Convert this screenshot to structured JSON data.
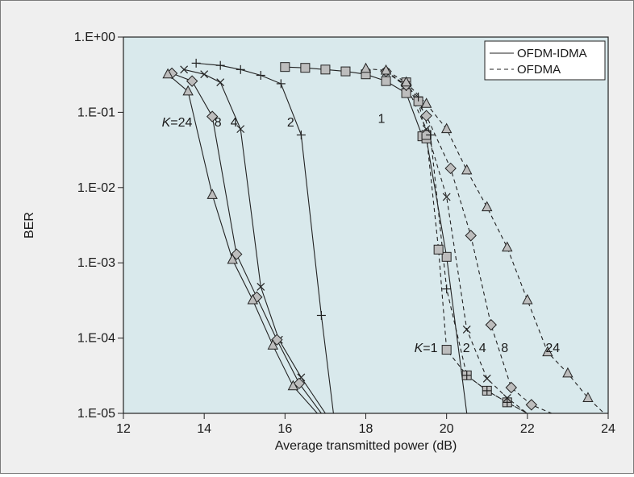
{
  "chart_data": {
    "type": "line",
    "xlabel": "Average transmitted power (dB)",
    "ylabel": "BER",
    "xlim": [
      12,
      24
    ],
    "ylim": [
      1e-05,
      1
    ],
    "yscale": "log",
    "xticks": [
      "12",
      "14",
      "16",
      "18",
      "20",
      "22",
      "24"
    ],
    "yticks": [
      "1.E+00",
      "1.E-01",
      "1.E-02",
      "1.E-03",
      "1.E-04",
      "1.E-05"
    ],
    "legend": {
      "placement": "top-right",
      "entries": [
        {
          "label": "OFDM-IDMA",
          "style": "solid"
        },
        {
          "label": "OFDMA",
          "style": "dashed"
        }
      ]
    },
    "annotations": [
      {
        "text": "K=24",
        "x": 12.95,
        "y": 0.065
      },
      {
        "text": "8",
        "x": 14.25,
        "y": 0.065
      },
      {
        "text": "4",
        "x": 14.65,
        "y": 0.065
      },
      {
        "text": "2",
        "x": 16.05,
        "y": 0.065
      },
      {
        "text": "1",
        "x": 18.3,
        "y": 0.072
      },
      {
        "text": "K=1",
        "x": 19.2,
        "y": 6.5e-05
      },
      {
        "text": "2",
        "x": 20.4,
        "y": 6.5e-05
      },
      {
        "text": "4",
        "x": 20.8,
        "y": 6.5e-05
      },
      {
        "text": "8",
        "x": 21.35,
        "y": 6.5e-05
      },
      {
        "text": "24",
        "x": 22.45,
        "y": 6.5e-05
      }
    ],
    "series": [
      {
        "name": "OFDM-IDMA",
        "K": "1",
        "style": "solid",
        "marker": "square",
        "x": [
          16.0,
          16.5,
          17.0,
          17.5,
          18.0,
          18.5,
          19.0,
          19.4,
          19.5,
          20.0,
          20.5
        ],
        "y": [
          0.4,
          0.39,
          0.37,
          0.35,
          0.32,
          0.26,
          0.18,
          0.048,
          0.045,
          0.0012,
          1e-05
        ]
      },
      {
        "name": "OFDM-IDMA",
        "K": "2",
        "style": "solid",
        "marker": "plus",
        "x": [
          13.8,
          14.4,
          14.9,
          15.4,
          15.9,
          16.4,
          16.9,
          17.2
        ],
        "y": [
          0.45,
          0.42,
          0.37,
          0.31,
          0.24,
          0.05,
          0.0002,
          1e-05
        ]
      },
      {
        "name": "OFDM-IDMA",
        "K": "4",
        "style": "solid",
        "marker": "x",
        "x": [
          13.5,
          14.0,
          14.4,
          14.9,
          15.4,
          15.85,
          16.4,
          17.0
        ],
        "y": [
          0.37,
          0.32,
          0.25,
          0.06,
          0.00048,
          9.5e-05,
          3e-05,
          1e-05
        ]
      },
      {
        "name": "OFDM-IDMA",
        "K": "8",
        "style": "solid",
        "marker": "diamond",
        "x": [
          13.2,
          13.7,
          14.2,
          14.8,
          15.3,
          15.8,
          16.35,
          16.9
        ],
        "y": [
          0.33,
          0.26,
          0.088,
          0.0013,
          0.00035,
          9.5e-05,
          2.5e-05,
          1e-05
        ]
      },
      {
        "name": "OFDM-IDMA",
        "K": "24",
        "style": "solid",
        "marker": "triangle",
        "x": [
          13.1,
          13.6,
          14.2,
          14.7,
          15.2,
          15.7,
          16.2,
          16.8
        ],
        "y": [
          0.32,
          0.19,
          0.008,
          0.0011,
          0.00032,
          8e-05,
          2.3e-05,
          1e-05
        ]
      },
      {
        "name": "OFDMA",
        "K": "1",
        "style": "dashed",
        "marker": "square",
        "x": [
          19.0,
          19.3,
          19.5,
          19.8,
          20.0,
          20.5,
          21.0,
          21.5,
          22.0
        ],
        "y": [
          0.25,
          0.14,
          0.05,
          0.0015,
          7e-05,
          3.2e-05,
          2e-05,
          1.4e-05,
          1e-05
        ]
      },
      {
        "name": "OFDMA",
        "K": "2",
        "style": "dashed",
        "marker": "plus",
        "x": [
          18.5,
          19.0,
          19.3,
          19.6,
          20.0,
          20.5,
          21.0,
          21.5,
          22.0
        ],
        "y": [
          0.35,
          0.22,
          0.16,
          0.05,
          0.00045,
          3.2e-05,
          2e-05,
          1.4e-05,
          1e-05
        ]
      },
      {
        "name": "OFDMA",
        "K": "4",
        "style": "dashed",
        "marker": "x",
        "x": [
          18.5,
          19.0,
          19.5,
          20.0,
          20.5,
          21.0,
          21.5,
          22.0
        ],
        "y": [
          0.34,
          0.23,
          0.06,
          0.0075,
          0.00013,
          2.9e-05,
          1.6e-05,
          1e-05
        ]
      },
      {
        "name": "OFDMA",
        "K": "8",
        "style": "dashed",
        "marker": "diamond",
        "x": [
          18.5,
          19.0,
          19.5,
          20.1,
          20.6,
          21.1,
          21.6,
          22.1,
          22.6
        ],
        "y": [
          0.35,
          0.23,
          0.09,
          0.018,
          0.0023,
          0.00015,
          2.2e-05,
          1.3e-05,
          1e-05
        ]
      },
      {
        "name": "OFDMA",
        "K": "24",
        "style": "dashed",
        "marker": "triangle",
        "x": [
          18.0,
          18.5,
          19.0,
          19.5,
          20.0,
          20.5,
          21.0,
          21.5,
          22.0,
          22.5,
          23.0,
          23.5,
          23.9
        ],
        "y": [
          0.38,
          0.36,
          0.25,
          0.13,
          0.06,
          0.017,
          0.0055,
          0.0016,
          0.00032,
          6.5e-05,
          3.4e-05,
          1.6e-05,
          1e-05
        ]
      }
    ]
  }
}
